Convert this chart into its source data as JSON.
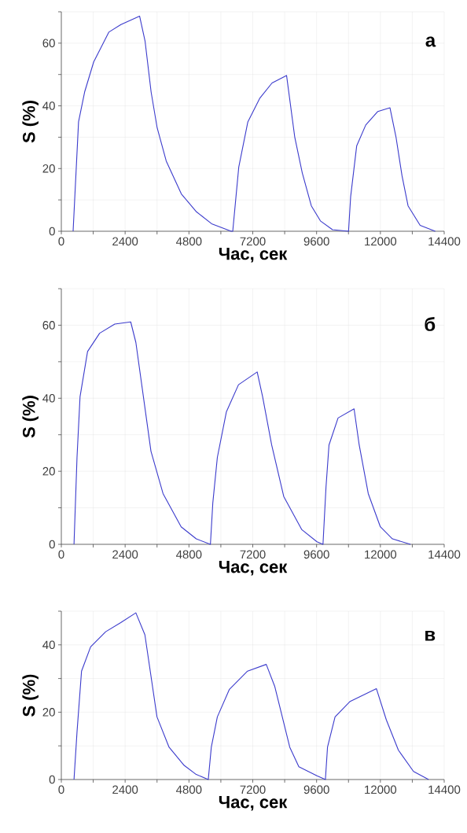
{
  "chart_data": [
    {
      "type": "line",
      "ylabel": "S (%)",
      "xlabel": "Час, сек",
      "annotations": [
        "а"
      ],
      "color": "#3b3bcc",
      "grid": true,
      "xlim": [
        0,
        14400
      ],
      "ylim": [
        0,
        70
      ],
      "xticks": [
        0,
        {
          "value": 1200,
          "label": null
        },
        2400,
        {
          "value": 3600,
          "label": null
        },
        4800,
        {
          "value": 6000,
          "label": null
        },
        7200,
        {
          "value": 8400,
          "label": null
        },
        9600,
        {
          "value": 10800,
          "label": null
        },
        12000,
        {
          "value": 13200,
          "label": null
        },
        14400
      ],
      "yticks": [
        0,
        {
          "value": 10,
          "label": null
        },
        20,
        {
          "value": 30,
          "label": null
        },
        40,
        {
          "value": 50,
          "label": null
        },
        60,
        {
          "value": 70,
          "label": null
        }
      ],
      "x": [
        443,
        648,
        876,
        1217,
        1785,
        2240,
        2945,
        3150,
        3377,
        3604,
        3945,
        4514,
        5082,
        5651,
        6390,
        6447,
        6674,
        7015,
        7470,
        7925,
        8471,
        8778,
        9062,
        9403,
        9744,
        10199,
        10802,
        10881,
        11108,
        11450,
        11904,
        12359,
        12586,
        12813,
        13041,
        13495,
        14064
      ],
      "values": [
        0,
        34.9,
        44.4,
        54,
        63.5,
        65.9,
        68.6,
        60.6,
        44.4,
        33,
        22.4,
        11.9,
        6.2,
        2.4,
        0,
        0,
        20.5,
        34.9,
        42.5,
        47.3,
        49.7,
        30.1,
        18.6,
        8.1,
        3.3,
        0.5,
        0,
        11,
        27.2,
        33.9,
        38.2,
        39.4,
        30.1,
        17.7,
        8.1,
        1.9,
        0
      ]
    },
    {
      "type": "line",
      "ylabel": "S (%)",
      "xlabel": "Час, сек",
      "annotations": [
        "б"
      ],
      "color": "#3b3bcc",
      "grid": true,
      "xlim": [
        0,
        14400
      ],
      "ylim": [
        0,
        70
      ],
      "xticks": [
        0,
        {
          "value": 1200,
          "label": null
        },
        2400,
        {
          "value": 3600,
          "label": null
        },
        4800,
        {
          "value": 6000,
          "label": null
        },
        7200,
        {
          "value": 8400,
          "label": null
        },
        9600,
        {
          "value": 10800,
          "label": null
        },
        12000,
        {
          "value": 13200,
          "label": null
        },
        14400
      ],
      "yticks": [
        0,
        {
          "value": 10,
          "label": null
        },
        20,
        {
          "value": 30,
          "label": null
        },
        40,
        {
          "value": 50,
          "label": null
        },
        60,
        {
          "value": 70,
          "label": null
        }
      ],
      "x": [
        477,
        590,
        704,
        987,
        1441,
        2009,
        2610,
        2803,
        3087,
        3371,
        3825,
        4506,
        5073,
        5607,
        5698,
        5868,
        6209,
        6663,
        7366,
        7571,
        7911,
        8365,
        9046,
        9614,
        9841,
        9954,
        10067,
        10408,
        11010,
        11203,
        11543,
        11998,
        12452,
        13133
      ],
      "values": [
        0,
        23.8,
        40.4,
        52.8,
        57.8,
        60.3,
        60.9,
        55.3,
        40.4,
        25.5,
        13.9,
        4.8,
        1.5,
        0,
        11.4,
        23.8,
        36.3,
        43.7,
        47.2,
        40.4,
        27.2,
        13.1,
        4,
        0.7,
        0,
        15.6,
        27.2,
        34.6,
        37.1,
        27.2,
        13.9,
        4.8,
        1.5,
        0
      ]
    },
    {
      "type": "line",
      "ylabel": "S (%)",
      "xlabel": "Час, сек",
      "annotations": [
        "в"
      ],
      "color": "#3b3bcc",
      "grid": true,
      "xlim": [
        0,
        14400
      ],
      "ylim": [
        0,
        50
      ],
      "xticks": [
        0,
        {
          "value": 1200,
          "label": null
        },
        2400,
        {
          "value": 3600,
          "label": null
        },
        4800,
        {
          "value": 6000,
          "label": null
        },
        7200,
        {
          "value": 8400,
          "label": null
        },
        9600,
        {
          "value": 10800,
          "label": null
        },
        12000,
        {
          "value": 13200,
          "label": null
        },
        14400
      ],
      "yticks": [
        0,
        {
          "value": 10,
          "label": null
        },
        20,
        {
          "value": 30,
          "label": null
        },
        40,
        {
          "value": 50,
          "label": null
        }
      ],
      "x": [
        477,
        590,
        760,
        1101,
        1668,
        2236,
        2803,
        3143,
        3598,
        4052,
        4619,
        5073,
        5527,
        5641,
        5868,
        6322,
        7003,
        7707,
        8025,
        8592,
        8933,
        9614,
        9932,
        10011,
        10295,
        10862,
        11849,
        12224,
        12678,
        13246,
        13813
      ],
      "values": [
        0,
        14.1,
        32.2,
        39.4,
        43.9,
        46.6,
        49.5,
        43,
        18.6,
        9.6,
        4.2,
        1.5,
        0,
        9.6,
        18.6,
        26.8,
        32.2,
        34.2,
        27.7,
        9.6,
        3.8,
        1.1,
        0,
        9.6,
        18.6,
        23.2,
        27,
        17.7,
        8.7,
        2.4,
        0
      ]
    }
  ]
}
